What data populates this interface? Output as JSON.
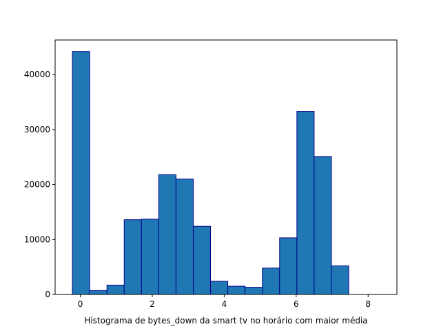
{
  "chart_data": {
    "type": "bar",
    "title": "",
    "xlabel": "Histograma de bytes_down da smart tv no horário com maior média",
    "ylabel": "",
    "xlim": [
      -0.7,
      8.8
    ],
    "ylim": [
      0,
      46300
    ],
    "xticks": [
      0,
      2,
      4,
      6,
      8
    ],
    "yticks": [
      0,
      10000,
      20000,
      30000,
      40000
    ],
    "bins": [
      {
        "x0": -0.7,
        "x1": -0.22,
        "value": 0
      },
      {
        "x0": -0.22,
        "x1": 0.26,
        "value": 44200
      },
      {
        "x0": 0.26,
        "x1": 0.74,
        "value": 700
      },
      {
        "x0": 0.74,
        "x1": 1.22,
        "value": 1700
      },
      {
        "x0": 1.22,
        "x1": 1.7,
        "value": 13600
      },
      {
        "x0": 1.7,
        "x1": 2.18,
        "value": 13700
      },
      {
        "x0": 2.18,
        "x1": 2.66,
        "value": 21800
      },
      {
        "x0": 2.66,
        "x1": 3.14,
        "value": 21000
      },
      {
        "x0": 3.14,
        "x1": 3.62,
        "value": 12400
      },
      {
        "x0": 3.62,
        "x1": 4.1,
        "value": 2400
      },
      {
        "x0": 4.1,
        "x1": 4.58,
        "value": 1500
      },
      {
        "x0": 4.58,
        "x1": 5.06,
        "value": 1300
      },
      {
        "x0": 5.06,
        "x1": 5.54,
        "value": 4800
      },
      {
        "x0": 5.54,
        "x1": 6.02,
        "value": 10300
      },
      {
        "x0": 6.02,
        "x1": 6.5,
        "value": 33300
      },
      {
        "x0": 6.5,
        "x1": 6.98,
        "value": 25100
      },
      {
        "x0": 6.98,
        "x1": 7.46,
        "value": 5200
      },
      {
        "x0": 7.46,
        "x1": 7.94,
        "value": 0
      },
      {
        "x0": 7.94,
        "x1": 8.42,
        "value": 0
      }
    ],
    "bar_fill": "#1f77b4",
    "bar_edge": "#00008b",
    "grid": false,
    "legend": "none"
  }
}
